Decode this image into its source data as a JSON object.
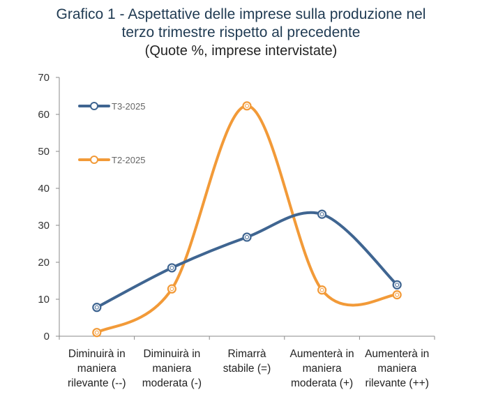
{
  "chart_data": {
    "type": "line",
    "title_line1": "Grafico 1 - Aspettative delle imprese sulla produzione nel",
    "title_line2": "terzo trimestre rispetto al precedente",
    "subtitle": "(Quote %, imprese intervistate)",
    "categories": [
      [
        "Diminuirà in",
        "maniera",
        "rilevante (--)"
      ],
      [
        "Diminuirà in",
        "maniera",
        "moderata (-)"
      ],
      [
        "Rimarrà",
        "stabile (=)"
      ],
      [
        "Aumenterà in",
        "maniera",
        "moderata (+)"
      ],
      [
        "Aumenterà in",
        "maniera",
        "rilevante (++)"
      ]
    ],
    "ylim": [
      0,
      70
    ],
    "yticks": [
      0,
      10,
      20,
      30,
      40,
      50,
      60,
      70
    ],
    "series": [
      {
        "name": "T3-2025",
        "color": "#3f6591",
        "values": [
          7.8,
          18.5,
          26.8,
          33.0,
          13.9
        ]
      },
      {
        "name": "T2-2025",
        "color": "#f29a38",
        "values": [
          1.0,
          12.8,
          62.3,
          12.5,
          11.2
        ]
      }
    ],
    "legend_position": "top-left"
  }
}
